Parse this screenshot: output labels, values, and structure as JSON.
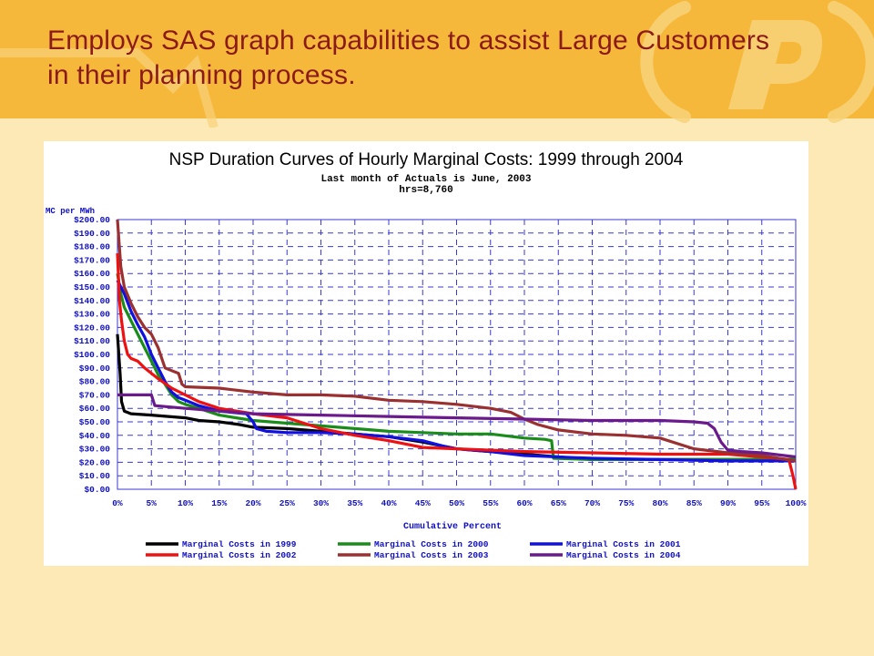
{
  "slide": {
    "title": "Employs SAS graph capabilities to assist Large Customers in their planning process.",
    "colors": {
      "background": "#fde9b6",
      "header_band": "#f5b83a",
      "title_text": "#8b1a1a",
      "logo": "#f8d27a"
    }
  },
  "chart_data": {
    "type": "line",
    "title": "NSP Duration Curves of Hourly Marginal Costs:   1999 through 2004",
    "subtitle_lines": [
      "Last month of Actuals is June, 2003",
      "hrs=8,760"
    ],
    "xlabel": "Cumulative Percent",
    "ylabel": "MC per MWh",
    "xlim": [
      0,
      100
    ],
    "ylim": [
      0,
      200
    ],
    "x_ticks": [
      "0%",
      "5%",
      "10%",
      "15%",
      "20%",
      "25%",
      "30%",
      "35%",
      "40%",
      "45%",
      "50%",
      "55%",
      "60%",
      "65%",
      "70%",
      "75%",
      "80%",
      "85%",
      "90%",
      "95%",
      "100%"
    ],
    "y_ticks": [
      "$0.00",
      "$10.00",
      "$20.00",
      "$30.00",
      "$40.00",
      "$50.00",
      "$60.00",
      "$70.00",
      "$80.00",
      "$90.00",
      "$100.00",
      "$110.00",
      "$120.00",
      "$130.00",
      "$140.00",
      "$150.00",
      "$160.00",
      "$170.00",
      "$180.00",
      "$190.00",
      "$200.00"
    ],
    "grid": true,
    "legend_position": "bottom",
    "series": [
      {
        "name": "Marginal Costs in 1999",
        "color": "#000000",
        "x": [
          0,
          0.2,
          0.4,
          0.6,
          1,
          2,
          5,
          10,
          12,
          15,
          18,
          20,
          25,
          30,
          35,
          40,
          45,
          50,
          55,
          60,
          65,
          70,
          75,
          80,
          85,
          90,
          95,
          100
        ],
        "y": [
          115,
          100,
          85,
          65,
          58,
          56,
          55,
          53,
          51,
          50,
          48,
          46,
          45,
          43,
          41,
          39,
          35,
          30,
          28,
          26,
          24,
          22,
          22,
          22,
          22,
          22,
          22,
          22
        ]
      },
      {
        "name": "Marginal Costs in 2000",
        "color": "#1a8c1a",
        "x": [
          0,
          0.5,
          1,
          2,
          3,
          4,
          5,
          6,
          7,
          8,
          9,
          10,
          12,
          15,
          20,
          25,
          30,
          35,
          40,
          45,
          50,
          55,
          60,
          63,
          64,
          64.3,
          70,
          80,
          90,
          100
        ],
        "y": [
          160,
          145,
          135,
          125,
          115,
          105,
          95,
          85,
          78,
          70,
          65,
          63,
          60,
          55,
          51,
          49,
          47,
          45,
          43,
          42,
          41,
          41,
          38,
          37,
          36,
          23,
          22,
          22,
          22,
          22
        ]
      },
      {
        "name": "Marginal Costs in 2001",
        "color": "#1010e0",
        "x": [
          0,
          0.5,
          1,
          2,
          3,
          4,
          5,
          6,
          7,
          8,
          9,
          10,
          12,
          15,
          19,
          20,
          20.5,
          22,
          25,
          30,
          35,
          40,
          45,
          48,
          50,
          55,
          60,
          70,
          80,
          90,
          100
        ],
        "y": [
          155,
          150,
          145,
          132,
          122,
          113,
          100,
          90,
          80,
          72,
          68,
          66,
          62,
          58,
          56,
          50,
          45,
          43,
          42,
          42,
          41,
          39,
          36,
          32,
          30,
          28,
          25,
          23,
          22,
          21,
          21
        ]
      },
      {
        "name": "Marginal Costs in 2002",
        "color": "#ee1111",
        "x": [
          0,
          0.3,
          0.6,
          1,
          1.5,
          2,
          3,
          4,
          5,
          6,
          8,
          10,
          12,
          15,
          20,
          25,
          30,
          35,
          40,
          45,
          50,
          55,
          60,
          70,
          80,
          90,
          95,
          99,
          99.6,
          100
        ],
        "y": [
          175,
          140,
          125,
          110,
          100,
          97,
          95,
          90,
          86,
          82,
          75,
          70,
          65,
          60,
          56,
          53,
          45,
          40,
          36,
          31,
          30,
          29,
          28,
          27,
          26,
          26,
          24,
          22,
          10,
          0
        ]
      },
      {
        "name": "Marginal Costs in 2003",
        "color": "#9b3030",
        "x": [
          0,
          0.5,
          1,
          2,
          3,
          4,
          5,
          6,
          7,
          8,
          9,
          9.5,
          10,
          15,
          20,
          25,
          30,
          35,
          40,
          45,
          50,
          55,
          58,
          60,
          62,
          65,
          70,
          75,
          80,
          85,
          90,
          95,
          100
        ],
        "y": [
          200,
          165,
          150,
          138,
          128,
          120,
          115,
          105,
          90,
          88,
          86,
          78,
          76,
          75,
          72,
          70,
          70,
          69,
          66,
          65,
          63,
          60,
          57,
          52,
          48,
          44,
          41,
          40,
          38,
          30,
          27,
          25,
          21
        ]
      },
      {
        "name": "Marginal Costs in 2004",
        "color": "#6a1a8a",
        "x": [
          0,
          0.3,
          0.6,
          1,
          2,
          3,
          4,
          5,
          5.5,
          10,
          20,
          30,
          40,
          50,
          60,
          70,
          80,
          85,
          87,
          88,
          89,
          90,
          92,
          95,
          100
        ],
        "y": [
          70,
          70,
          70,
          70,
          70,
          70,
          70,
          70,
          62,
          60,
          56,
          55,
          54,
          53,
          52,
          51,
          51,
          50,
          49,
          45,
          35,
          29,
          28,
          27,
          24
        ]
      }
    ]
  }
}
